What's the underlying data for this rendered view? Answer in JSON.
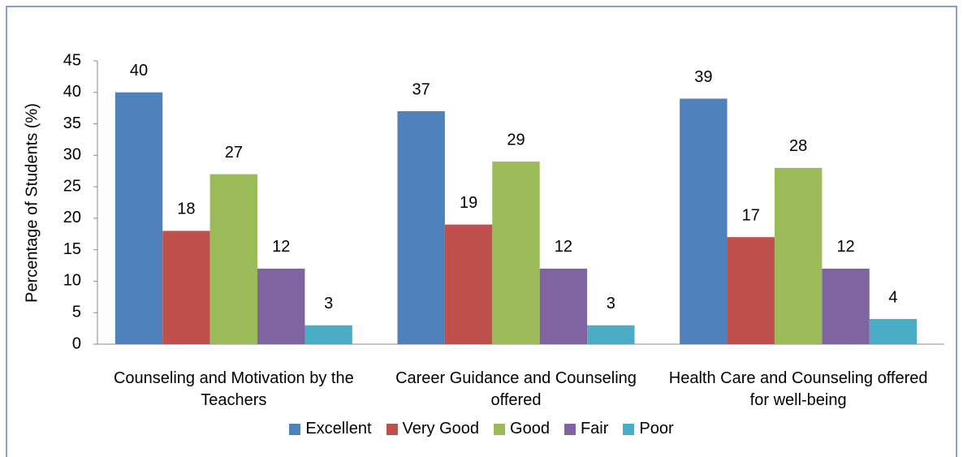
{
  "chart_data": {
    "type": "bar",
    "y_label": "Percentage of Students (%)",
    "categories": [
      "Counseling and Motivation by the Teachers",
      "Career Guidance and Counseling offered",
      "Health Care and Counseling offered for well-being"
    ],
    "series": [
      {
        "name": "Excellent",
        "color": "#4f81bd",
        "values": [
          40,
          37,
          39
        ]
      },
      {
        "name": "Very Good",
        "color": "#c0504d",
        "values": [
          18,
          19,
          17
        ]
      },
      {
        "name": "Good",
        "color": "#9bbb59",
        "values": [
          27,
          29,
          28
        ]
      },
      {
        "name": "Fair",
        "color": "#8064a2",
        "values": [
          12,
          12,
          12
        ]
      },
      {
        "name": "Poor",
        "color": "#4bacc6",
        "values": [
          3,
          3,
          4
        ]
      }
    ],
    "ylim": [
      0,
      45
    ],
    "yticks": [
      0,
      5,
      10,
      15,
      20,
      25,
      30,
      35,
      40,
      45
    ],
    "grid": false,
    "legend": "bottom"
  }
}
